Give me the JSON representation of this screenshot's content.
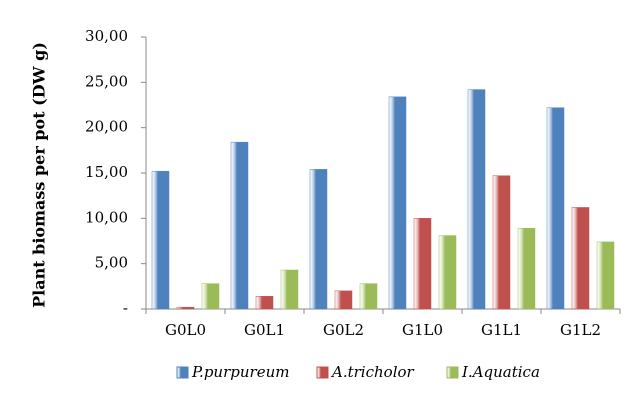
{
  "chart_data": {
    "type": "bar",
    "y_label": "Plant biomass per pot (DW g)",
    "categories": [
      "G0L0",
      "G0L1",
      "G0L2",
      "G1L0",
      "G1L1",
      "G1L2"
    ],
    "series": [
      {
        "name": "P.purpureum",
        "color": "#4f81bd",
        "values": [
          15.2,
          18.4,
          15.4,
          23.4,
          24.2,
          22.2
        ]
      },
      {
        "name": "A.tricholor",
        "color": "#c0504d",
        "values": [
          0.2,
          1.4,
          2.0,
          10.0,
          14.7,
          11.2
        ]
      },
      {
        "name": "I.Aquatica",
        "color": "#9bbb59",
        "values": [
          2.8,
          4.3,
          2.8,
          8.1,
          8.9,
          7.4
        ]
      }
    ],
    "ylim": [
      0,
      30
    ],
    "yticks": [
      {
        "value": 0,
        "label": "-"
      },
      {
        "value": 5,
        "label": "5,00"
      },
      {
        "value": 10,
        "label": "10,00"
      },
      {
        "value": 15,
        "label": "15,00"
      },
      {
        "value": 20,
        "label": "20,00"
      },
      {
        "value": 25,
        "label": "25,00"
      },
      {
        "value": 30,
        "label": "30,00"
      }
    ],
    "legend": "bottom"
  }
}
